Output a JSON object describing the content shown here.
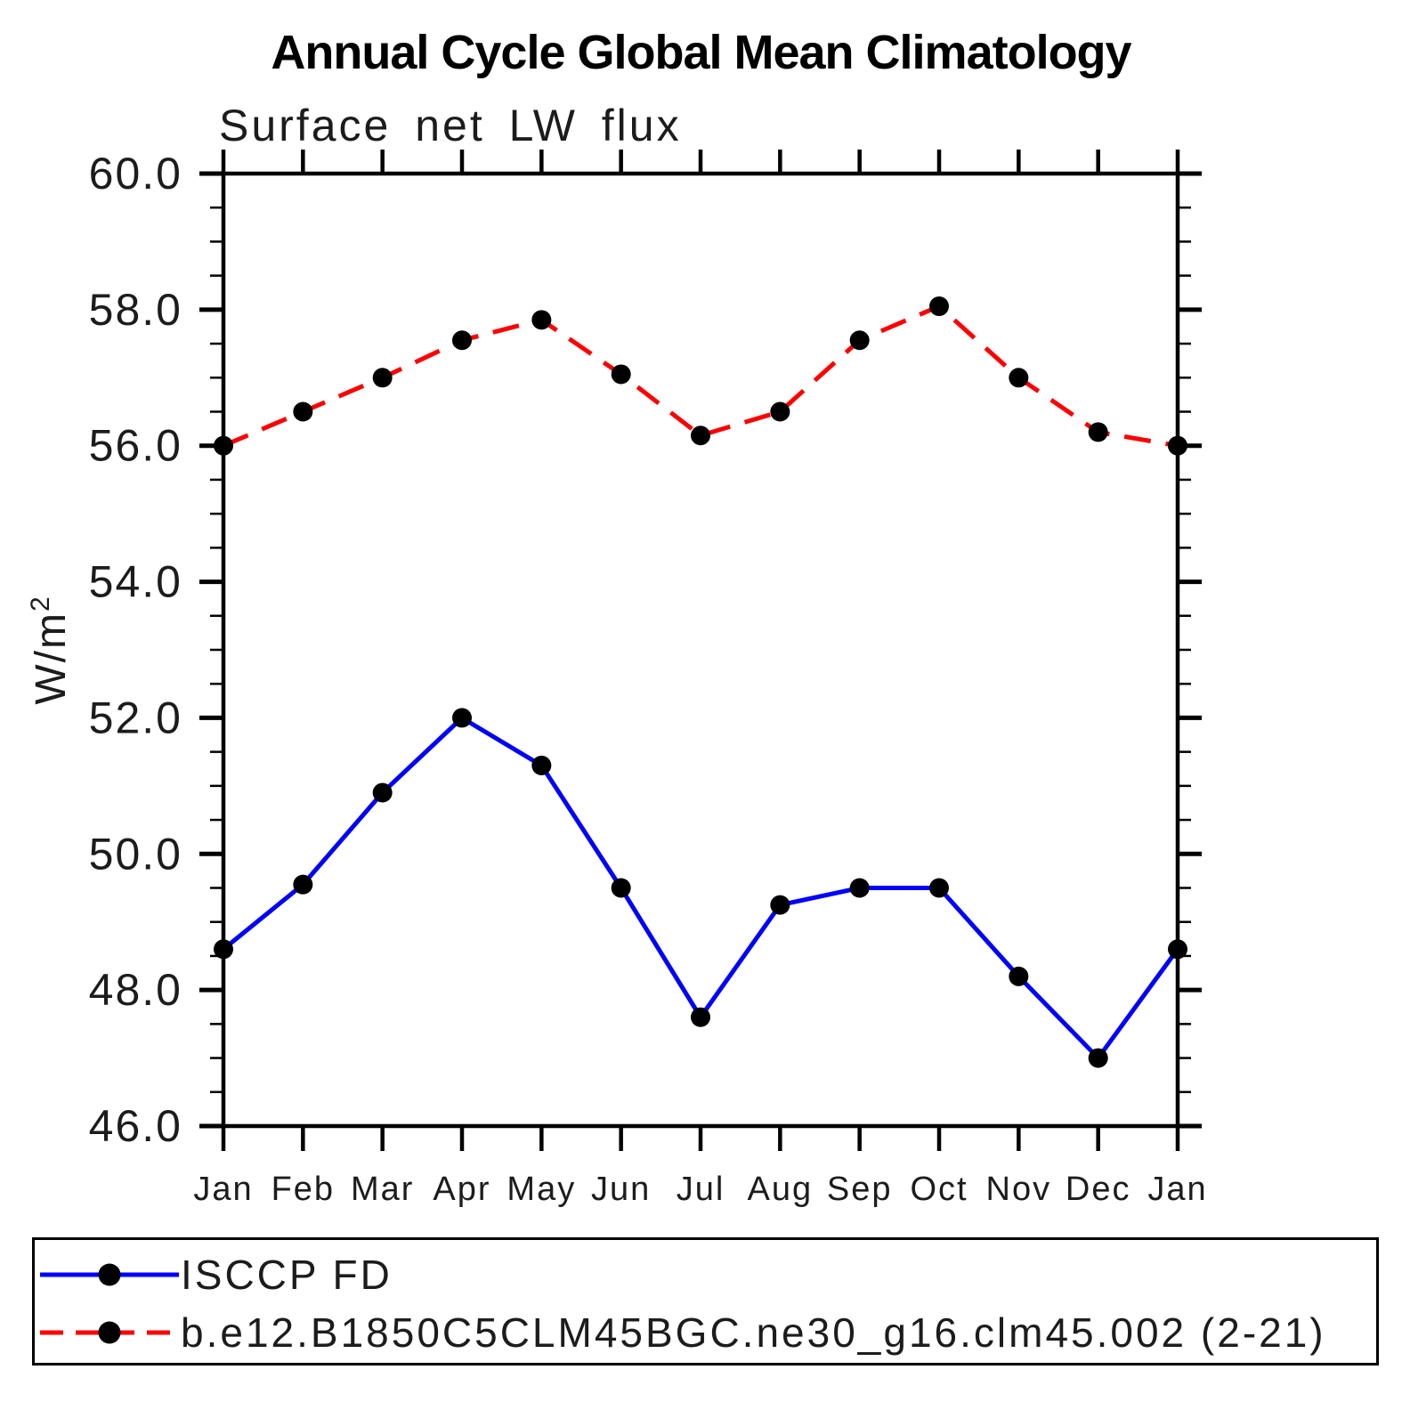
{
  "header": {
    "title": "Annual Cycle Global Mean Climatology",
    "subtitle": "Surface net LW flux"
  },
  "y_axis": {
    "unit_base": "W/m",
    "unit_exponent": "2"
  },
  "legend": {
    "position": "bottom",
    "entries": [
      {
        "label": "ISCCP FD",
        "color": "#0000ff",
        "line": "solid",
        "marker": "black-dot"
      },
      {
        "label": "b.e12.B1850C5CLM45BGC.ne30_g16.clm45.002 (2-21)",
        "color": "#ff0000",
        "line": "dashed",
        "marker": "black-dot"
      }
    ]
  },
  "chart_data": {
    "type": "line",
    "title": "Annual Cycle Global Mean Climatology",
    "subtitle": "Surface net LW flux",
    "xlabel": "",
    "ylabel": "W/m2",
    "categories": [
      "Jan",
      "Feb",
      "Mar",
      "Apr",
      "May",
      "Jun",
      "Jul",
      "Aug",
      "Sep",
      "Oct",
      "Nov",
      "Dec",
      "Jan"
    ],
    "series": [
      {
        "name": "ISCCP FD",
        "color": "#0000ff",
        "line": "solid",
        "marker": "black-dot",
        "values": [
          48.6,
          49.55,
          50.9,
          52.0,
          51.3,
          49.5,
          47.6,
          49.25,
          49.5,
          49.5,
          48.2,
          47.0,
          48.6
        ]
      },
      {
        "name": "b.e12.B1850C5CLM45BGC.ne30_g16.clm45.002 (2-21)",
        "color": "#ff0000",
        "line": "dashed",
        "marker": "black-dot",
        "values": [
          56.0,
          56.5,
          57.0,
          57.55,
          57.85,
          57.05,
          56.15,
          56.5,
          57.55,
          58.05,
          57.0,
          56.2,
          56.0
        ]
      }
    ],
    "ylim": [
      46.0,
      60.0
    ],
    "yticks": [
      46.0,
      48.0,
      50.0,
      52.0,
      54.0,
      56.0,
      58.0,
      60.0
    ],
    "ytick_labels": [
      "46.0",
      "48.0",
      "50.0",
      "52.0",
      "54.0",
      "56.0",
      "58.0",
      "60.0"
    ],
    "ytick_minor_step": 0.5,
    "grid": false,
    "tick_direction": "out",
    "legend_position": "bottom"
  }
}
